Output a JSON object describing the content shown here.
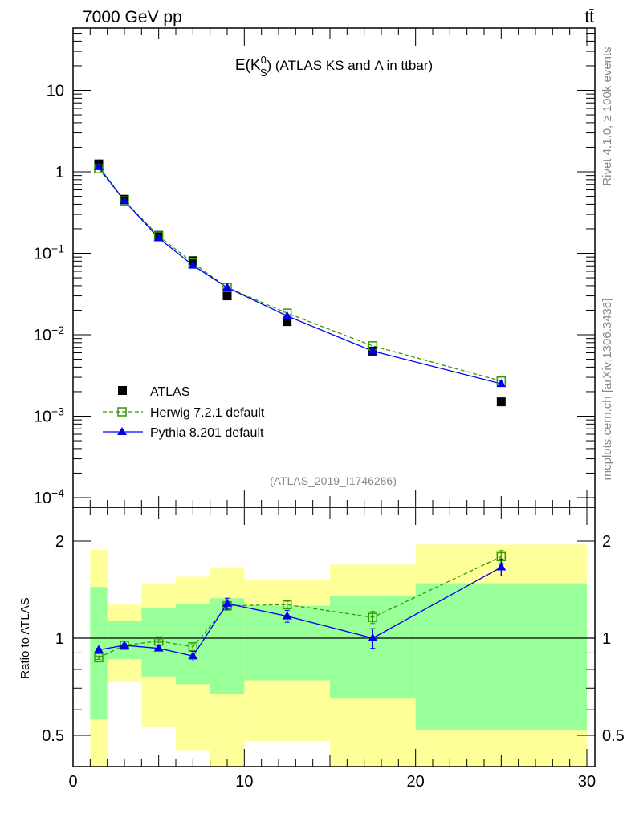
{
  "header": {
    "left": "7000 GeV pp",
    "right": "tt̄"
  },
  "side_text": {
    "rivet": "Rivet 4.1.0, ≥ 100k events",
    "mcplots": "mcplots.cern.ch [arXiv:1306.3436]"
  },
  "colors": {
    "atlas": "#000000",
    "herwig": "#339900",
    "pythia": "#0000ee",
    "band_yellow": "#ffff99",
    "band_green": "#99ff99"
  },
  "chart_data": [
    {
      "type": "line",
      "title": {
        "main": "E(K",
        "sup": "0",
        "sub": "S",
        "rest": ") (ATLAS KS and Λ in ttbar)"
      },
      "analysis_label": "(ATLAS_2019_I1746286)",
      "xlim": [
        0,
        30.5
      ],
      "ylim": [
        8e-05,
        59
      ],
      "yscale": "log",
      "ytick_labels": [
        {
          "value": 10,
          "label": "10"
        },
        {
          "value": 1,
          "label": "1"
        },
        {
          "value": 0.1,
          "base": "10",
          "exp": "−1"
        },
        {
          "value": 0.01,
          "base": "10",
          "exp": "−2"
        },
        {
          "value": 0.001,
          "base": "10",
          "exp": "−3"
        },
        {
          "value": 0.0001,
          "base": "10",
          "exp": "−4"
        }
      ],
      "legend_position": "bottom-left",
      "x": [
        1.5,
        3,
        5,
        7,
        9,
        12.5,
        17.5,
        25
      ],
      "series": [
        {
          "name": "ATLAS",
          "key": "atlas",
          "values": [
            1.25,
            0.46,
            0.166,
            0.081,
            0.03,
            0.0145,
            0.0063,
            0.0015
          ]
        },
        {
          "name": "Herwig 7.2.1 default",
          "key": "herwig",
          "values": [
            1.09,
            0.44,
            0.163,
            0.076,
            0.038,
            0.0184,
            0.0073,
            0.0027
          ]
        },
        {
          "name": "Pythia 8.201 default",
          "key": "pythia",
          "values": [
            1.15,
            0.44,
            0.154,
            0.071,
            0.038,
            0.017,
            0.0063,
            0.0025
          ]
        }
      ]
    },
    {
      "type": "line",
      "ylabel": "Ratio to ATLAS",
      "yscale": "log",
      "ylim": [
        0.4,
        2.54
      ],
      "xlim": [
        0,
        30.5
      ],
      "xtick_labels": [
        "0",
        "10",
        "20",
        "30"
      ],
      "xticks": [
        0,
        10,
        20,
        30
      ],
      "ytick_labels": [
        {
          "value": 2,
          "label": "2"
        },
        {
          "value": 1,
          "label": "1"
        },
        {
          "value": 0.5,
          "label": "0.5"
        }
      ],
      "bin_edges": [
        1,
        2,
        4,
        6,
        8,
        10,
        15,
        20,
        30
      ],
      "band_yellow": [
        [
          0.3,
          1.88
        ],
        [
          0.73,
          1.27
        ],
        [
          0.53,
          1.48
        ],
        [
          0.45,
          1.55
        ],
        [
          0.3,
          1.66
        ],
        [
          0.48,
          1.52
        ],
        [
          0.3,
          1.69
        ],
        [
          0.3,
          1.95
        ]
      ],
      "band_green": [
        [
          0.56,
          1.44
        ],
        [
          0.86,
          1.13
        ],
        [
          0.76,
          1.24
        ],
        [
          0.72,
          1.28
        ],
        [
          0.67,
          1.33
        ],
        [
          0.74,
          1.26
        ],
        [
          0.65,
          1.35
        ],
        [
          0.52,
          1.48
        ]
      ],
      "x": [
        1.5,
        3,
        5,
        7,
        9,
        12.5,
        17.5,
        25
      ],
      "series": [
        {
          "name": "Herwig 7.2.1 default",
          "key": "herwig",
          "values": [
            0.87,
            0.95,
            0.98,
            0.94,
            1.26,
            1.27,
            1.16,
            1.79
          ],
          "errors": [
            0.01,
            0.01,
            0.01,
            0.015,
            0.04,
            0.03,
            0.05,
            0.08
          ]
        },
        {
          "name": "Pythia 8.201 default",
          "key": "pythia",
          "values": [
            0.92,
            0.95,
            0.93,
            0.88,
            1.28,
            1.17,
            1.0,
            1.66
          ],
          "errors": [
            0.01,
            0.01,
            0.015,
            0.03,
            0.05,
            0.05,
            0.07,
            0.1
          ]
        }
      ]
    }
  ]
}
